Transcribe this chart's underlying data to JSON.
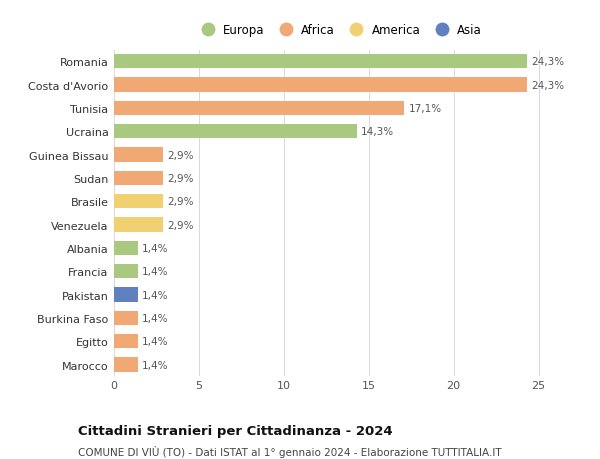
{
  "countries": [
    "Romania",
    "Costa d'Avorio",
    "Tunisia",
    "Ucraina",
    "Guinea Bissau",
    "Sudan",
    "Brasile",
    "Venezuela",
    "Albania",
    "Francia",
    "Pakistan",
    "Burkina Faso",
    "Egitto",
    "Marocco"
  ],
  "values": [
    24.3,
    24.3,
    17.1,
    14.3,
    2.9,
    2.9,
    2.9,
    2.9,
    1.4,
    1.4,
    1.4,
    1.4,
    1.4,
    1.4
  ],
  "labels": [
    "24,3%",
    "24,3%",
    "17,1%",
    "14,3%",
    "2,9%",
    "2,9%",
    "2,9%",
    "2,9%",
    "1,4%",
    "1,4%",
    "1,4%",
    "1,4%",
    "1,4%",
    "1,4%"
  ],
  "continents": [
    "Europa",
    "Africa",
    "Africa",
    "Europa",
    "Africa",
    "Africa",
    "America",
    "America",
    "Europa",
    "Europa",
    "Asia",
    "Africa",
    "Africa",
    "Africa"
  ],
  "colors": {
    "Europa": "#a8c97f",
    "Africa": "#f0a875",
    "America": "#f0d070",
    "Asia": "#6080c0"
  },
  "xlim": [
    0,
    26.5
  ],
  "xticks": [
    0,
    5,
    10,
    15,
    20,
    25
  ],
  "title": "Cittadini Stranieri per Cittadinanza - 2024",
  "subtitle": "COMUNE DI VIÙ (TO) - Dati ISTAT al 1° gennaio 2024 - Elaborazione TUTTITALIA.IT",
  "title_fontsize": 9.5,
  "subtitle_fontsize": 7.5,
  "bar_height": 0.62,
  "background_color": "#ffffff",
  "grid_color": "#d8d8d8",
  "label_fontsize": 7.5,
  "ytick_fontsize": 8,
  "xtick_fontsize": 8,
  "legend_order": [
    "Europa",
    "Africa",
    "America",
    "Asia"
  ]
}
